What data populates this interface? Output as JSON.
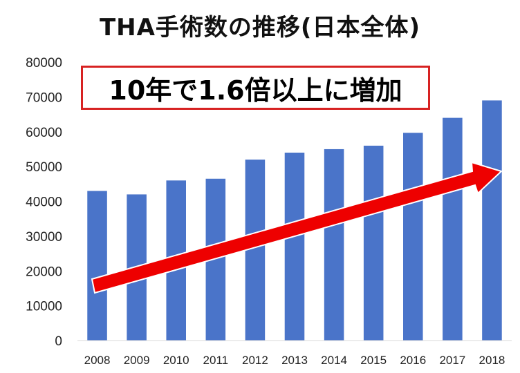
{
  "colors": {
    "bar": "#4a74c9",
    "arrow": "#ee0000",
    "arrow_outline": "#ffffff",
    "callout_border": "#d72222"
  },
  "callout": {
    "text": "10年で1.6倍以上に増加"
  },
  "chart_data": {
    "type": "bar",
    "title": "THA手術数の推移(日本全体)",
    "xlabel": "",
    "ylabel": "",
    "categories": [
      "2008",
      "2009",
      "2010",
      "2011",
      "2012",
      "2013",
      "2014",
      "2015",
      "2016",
      "2017",
      "2018"
    ],
    "values": [
      43000,
      42000,
      46000,
      46500,
      52000,
      54000,
      55000,
      56000,
      59700,
      64000,
      69000
    ],
    "ylim": [
      0,
      80000
    ],
    "yticks": [
      "0",
      "10000",
      "20000",
      "30000",
      "40000",
      "50000",
      "60000",
      "70000",
      "80000"
    ],
    "grid": false,
    "legend": "none",
    "annotations": [
      "upward-trend-arrow"
    ]
  }
}
